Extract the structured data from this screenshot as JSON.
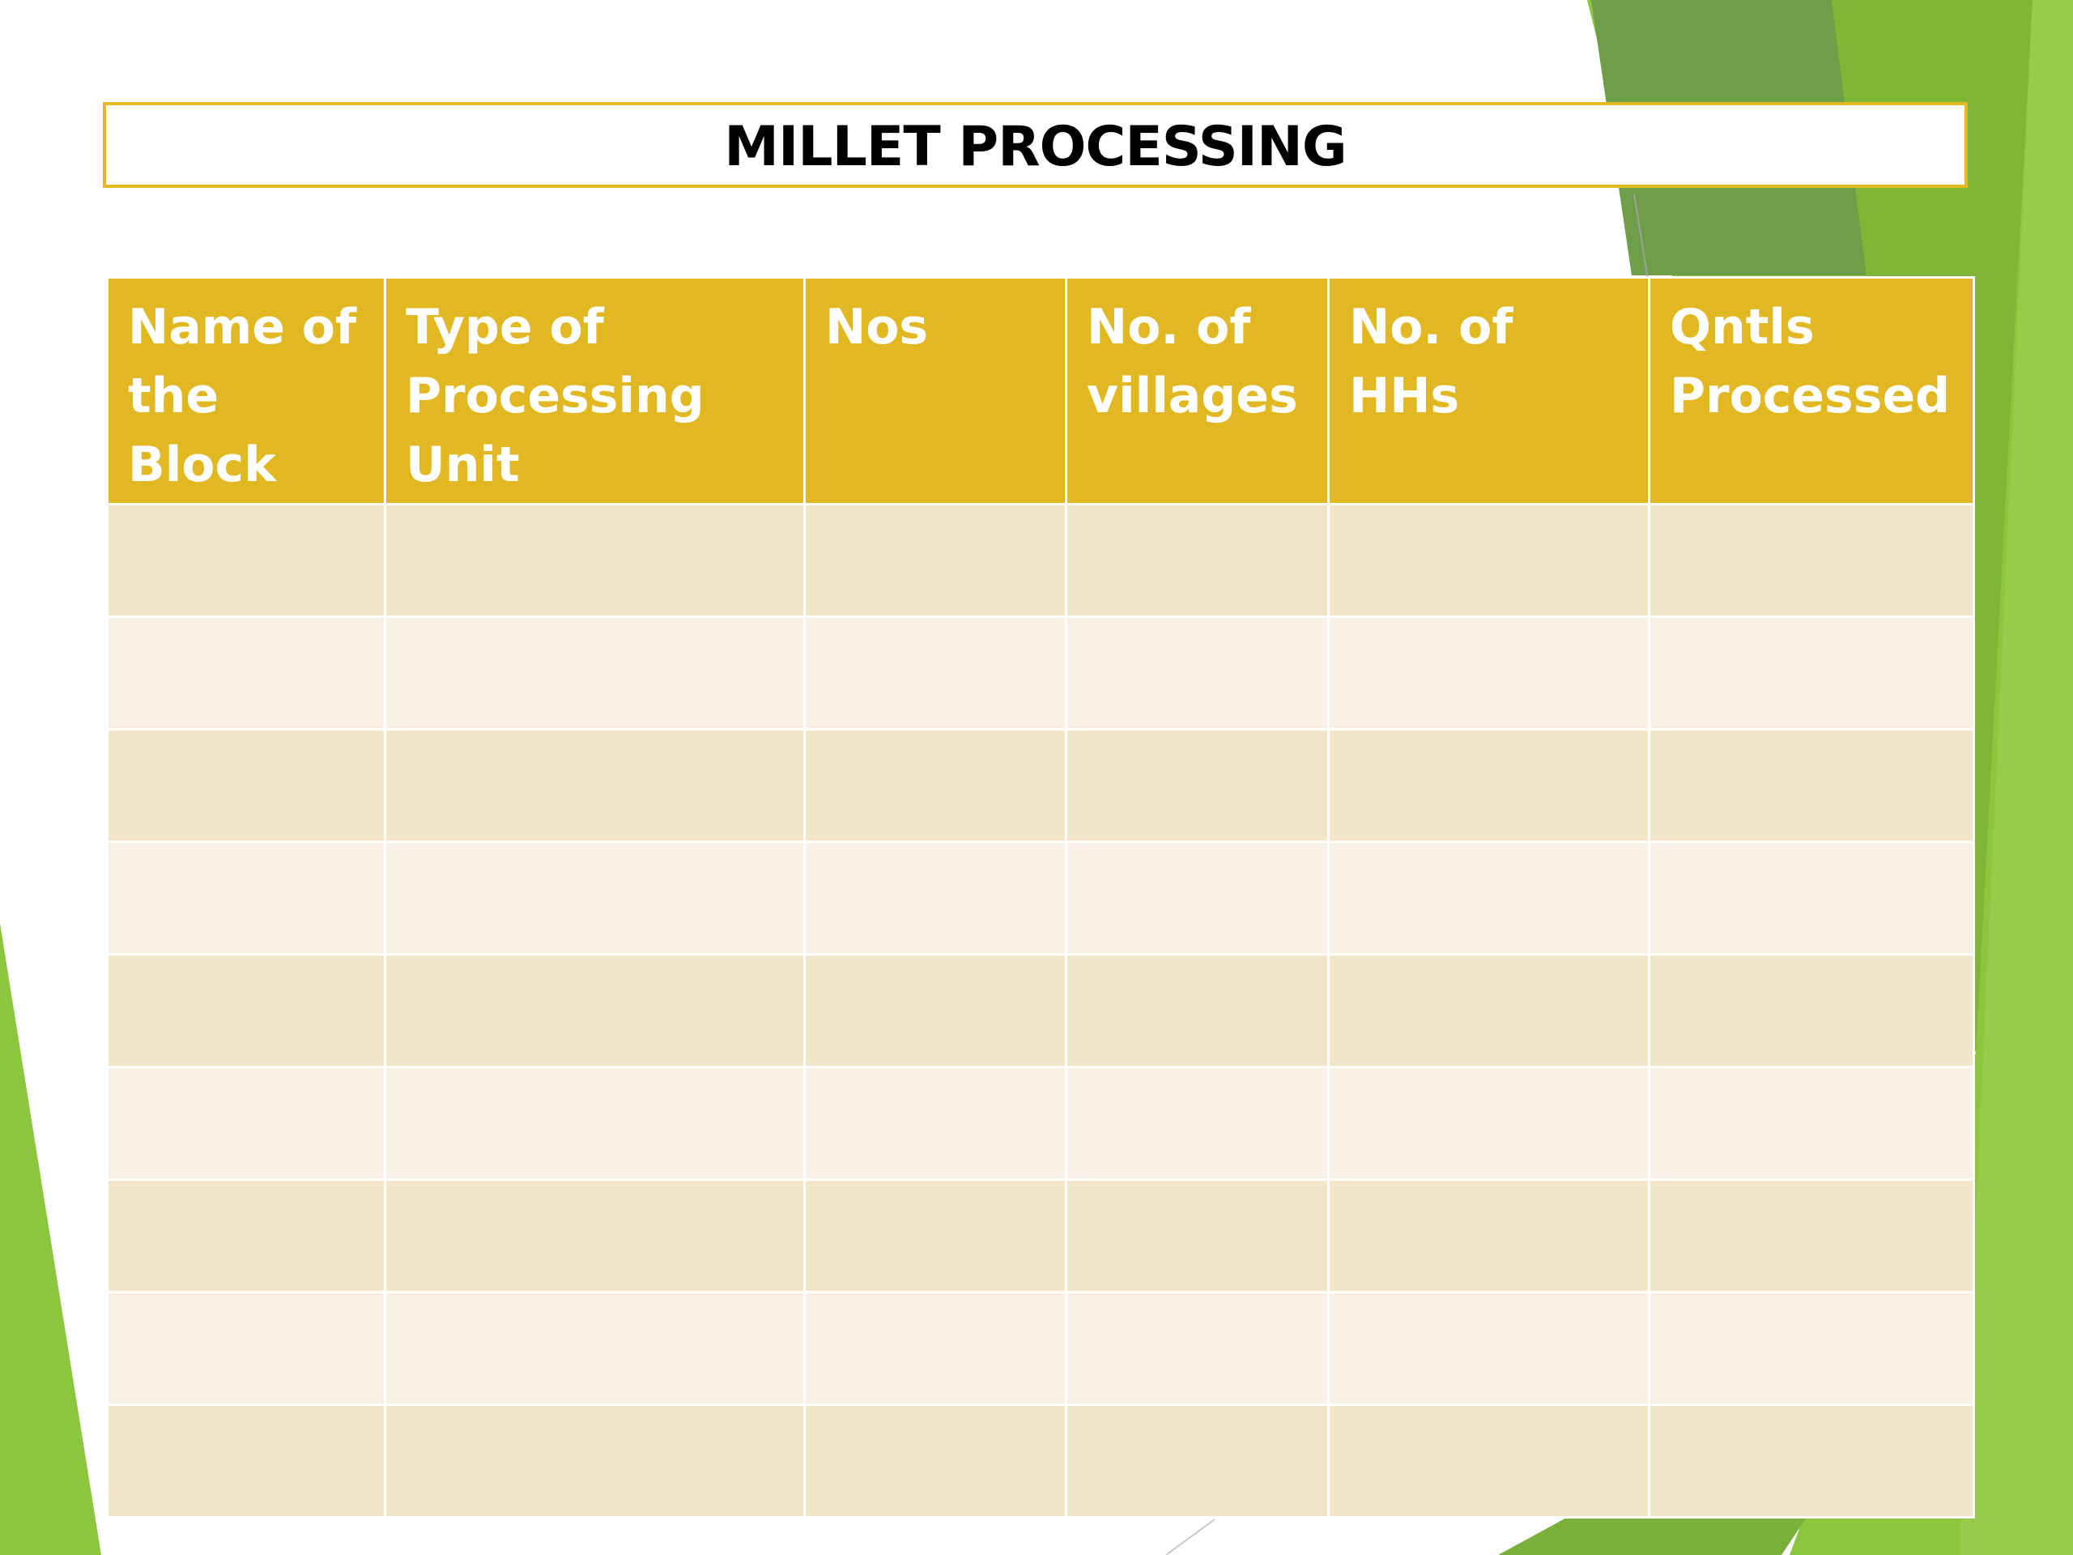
{
  "slide": {
    "title": "MILLET PROCESSING"
  },
  "table": {
    "headers": [
      "Name of the Block",
      "Type of Processing Unit",
      "Nos",
      "No. of villages",
      "No. of HHs",
      "Qntls Processed"
    ],
    "rows": [
      [
        "",
        "",
        "",
        "",
        "",
        ""
      ],
      [
        "",
        "",
        "",
        "",
        "",
        ""
      ],
      [
        "",
        "",
        "",
        "",
        "",
        ""
      ],
      [
        "",
        "",
        "",
        "",
        "",
        ""
      ],
      [
        "",
        "",
        "",
        "",
        "",
        ""
      ],
      [
        "",
        "",
        "",
        "",
        "",
        ""
      ],
      [
        "",
        "",
        "",
        "",
        "",
        ""
      ],
      [
        "",
        "",
        "",
        "",
        "",
        ""
      ],
      [
        "",
        "",
        "",
        "",
        "",
        ""
      ]
    ]
  },
  "colors": {
    "header_background": "#E2B822",
    "header_text": "#ffffff",
    "row_band_dark": "#F3E5CA",
    "row_band_light": "#F9F1E6",
    "title_border": "#E2B822",
    "accent_green": "#8CC63F"
  }
}
